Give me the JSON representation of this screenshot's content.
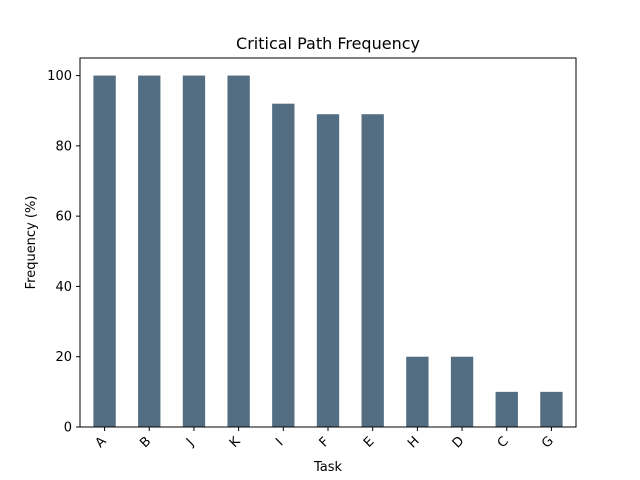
{
  "chart_data": {
    "type": "bar",
    "title": "Critical Path Frequency",
    "xlabel": "Task",
    "ylabel": "Frequency (%)",
    "categories": [
      "A",
      "B",
      "J",
      "K",
      "I",
      "F",
      "E",
      "H",
      "D",
      "C",
      "G"
    ],
    "values": [
      100,
      100,
      100,
      100,
      92,
      89,
      89,
      20,
      20,
      10,
      10
    ],
    "ylim": [
      0,
      105
    ],
    "yticks": [
      0,
      20,
      40,
      60,
      80,
      100
    ],
    "bar_color": "#536e82",
    "grid": false,
    "legend": "none"
  }
}
